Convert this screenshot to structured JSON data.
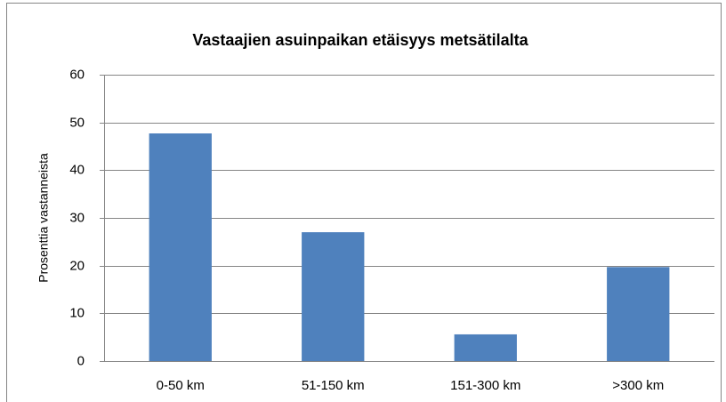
{
  "chart_data": {
    "type": "bar",
    "title": "Vastaajien asuinpaikan etäisyys metsätilalta",
    "y_label": "Prosenttia vastanneista",
    "categories": [
      "0-50 km",
      "51-150 km",
      "151-300 km",
      ">300 km"
    ],
    "values": [
      47.7,
      27,
      5.6,
      19.7
    ],
    "color": "#4f81bd",
    "ylim": [
      0,
      60
    ],
    "yticks": [
      0,
      10,
      20,
      30,
      40,
      50,
      60
    ],
    "grid": true
  }
}
